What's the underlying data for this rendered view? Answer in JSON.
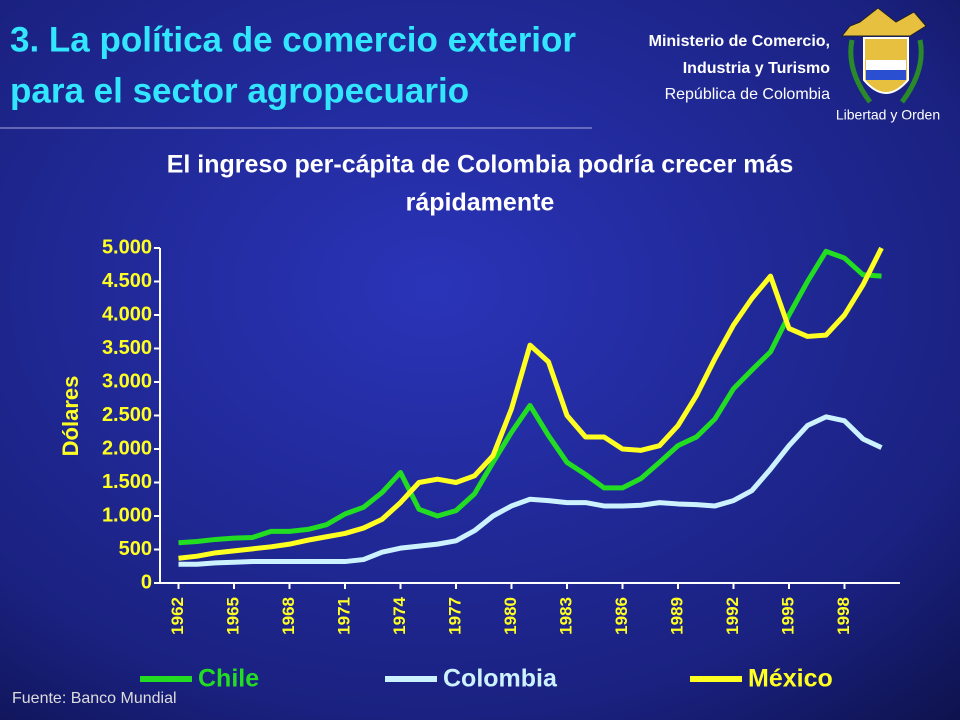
{
  "header": {
    "title_lines": [
      "3. La política de comercio exterior",
      "para el sector agropecuario"
    ],
    "ministry_lines": [
      "Ministerio de Comercio,",
      "Industria y Turismo",
      "República de Colombia"
    ],
    "motto": "Libertad y Orden"
  },
  "source": "Fuente: Banco Mundial",
  "chart_data": {
    "type": "line",
    "title_lines": [
      "El ingreso per-cápita de Colombia podría crecer más",
      "rápidamente"
    ],
    "y_label": "Dólares",
    "x": [
      1962,
      1963,
      1964,
      1965,
      1966,
      1967,
      1968,
      1969,
      1970,
      1971,
      1972,
      1973,
      1974,
      1975,
      1976,
      1977,
      1978,
      1979,
      1980,
      1981,
      1982,
      1983,
      1984,
      1985,
      1986,
      1987,
      1988,
      1989,
      1990,
      1991,
      1992,
      1993,
      1994,
      1995,
      1996,
      1997,
      1998,
      1999,
      2000
    ],
    "xlim": [
      1961,
      2001
    ],
    "xticks": [
      1962,
      1965,
      1968,
      1971,
      1974,
      1977,
      1980,
      1983,
      1986,
      1989,
      1992,
      1995,
      1998
    ],
    "ylim": [
      0,
      5000
    ],
    "yticks": [
      {
        "value": 0,
        "label": "0"
      },
      {
        "value": 500,
        "label": "500"
      },
      {
        "value": 1000,
        "label": "1.000"
      },
      {
        "value": 1500,
        "label": "1.500"
      },
      {
        "value": 2000,
        "label": "2.000"
      },
      {
        "value": 2500,
        "label": "2.500"
      },
      {
        "value": 3000,
        "label": "3.000"
      },
      {
        "value": 3500,
        "label": "3.500"
      },
      {
        "value": 4000,
        "label": "4.000"
      },
      {
        "value": 4500,
        "label": "4.500"
      },
      {
        "value": 5000,
        "label": "5.000"
      }
    ],
    "grid": false,
    "series": [
      {
        "name": "Chile",
        "color": "#22dd22",
        "values": [
          600,
          620,
          650,
          670,
          680,
          770,
          770,
          800,
          870,
          1030,
          1130,
          1350,
          1650,
          1100,
          1000,
          1080,
          1330,
          1800,
          2250,
          2650,
          2200,
          1800,
          1620,
          1420,
          1420,
          1560,
          1800,
          2050,
          2180,
          2450,
          2900,
          3180,
          3450,
          4000,
          4500,
          4950,
          4850,
          4600,
          4580
        ]
      },
      {
        "name": "Colombia",
        "color": "#ccf2ff",
        "values": [
          280,
          280,
          300,
          310,
          320,
          320,
          320,
          320,
          320,
          320,
          350,
          460,
          520,
          550,
          580,
          630,
          780,
          1000,
          1150,
          1250,
          1230,
          1200,
          1200,
          1150,
          1150,
          1160,
          1200,
          1180,
          1170,
          1150,
          1230,
          1380,
          1700,
          2050,
          2350,
          2480,
          2420,
          2150,
          2020
        ]
      },
      {
        "name": "México",
        "color": "#ffff22",
        "values": [
          370,
          400,
          450,
          480,
          510,
          540,
          580,
          640,
          690,
          740,
          820,
          950,
          1200,
          1500,
          1550,
          1500,
          1600,
          1900,
          2600,
          3550,
          3300,
          2500,
          2180,
          2180,
          2000,
          1980,
          2050,
          2350,
          2800,
          3350,
          3850,
          4250,
          4580,
          3800,
          3680,
          3700,
          4000,
          4450,
          5000
        ]
      }
    ]
  }
}
